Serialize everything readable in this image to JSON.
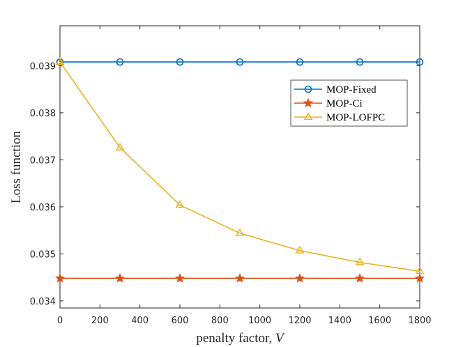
{
  "chart_data": {
    "type": "line",
    "xlabel": "penalty factor, ",
    "xlabel_var": "V",
    "ylabel": "Loss function",
    "xlim": [
      0,
      1800
    ],
    "ylim": [
      0.03385,
      0.03985
    ],
    "xticks": [
      0,
      200,
      400,
      600,
      800,
      1000,
      1200,
      1400,
      1600,
      1800
    ],
    "xtick_labels": [
      "0",
      "200",
      "400",
      "600",
      "800",
      "1000",
      "1200",
      "1400",
      "1600",
      "1800"
    ],
    "yticks": [
      0.034,
      0.035,
      0.036,
      0.037,
      0.038,
      0.039
    ],
    "ytick_labels": [
      "0.034",
      "0.035",
      "0.036",
      "0.037",
      "0.038",
      "0.039"
    ],
    "grid": false,
    "legend_position": "top-right",
    "x": [
      0,
      300,
      600,
      900,
      1200,
      1500,
      1800
    ],
    "series": [
      {
        "name": "MOP-Fixed",
        "color": "#0072BD",
        "marker": "circle",
        "values": [
          0.03908,
          0.03908,
          0.03908,
          0.03908,
          0.03908,
          0.03908,
          0.03908
        ]
      },
      {
        "name": "MOP-Ci",
        "color": "#D95319",
        "marker": "star",
        "values": [
          0.03448,
          0.03448,
          0.03448,
          0.03448,
          0.03448,
          0.03448,
          0.03448
        ]
      },
      {
        "name": "MOP-LOFPC",
        "color": "#EDB120",
        "marker": "triangle",
        "values": [
          0.03908,
          0.03726,
          0.03604,
          0.03544,
          0.03507,
          0.03482,
          0.03463
        ]
      }
    ]
  }
}
